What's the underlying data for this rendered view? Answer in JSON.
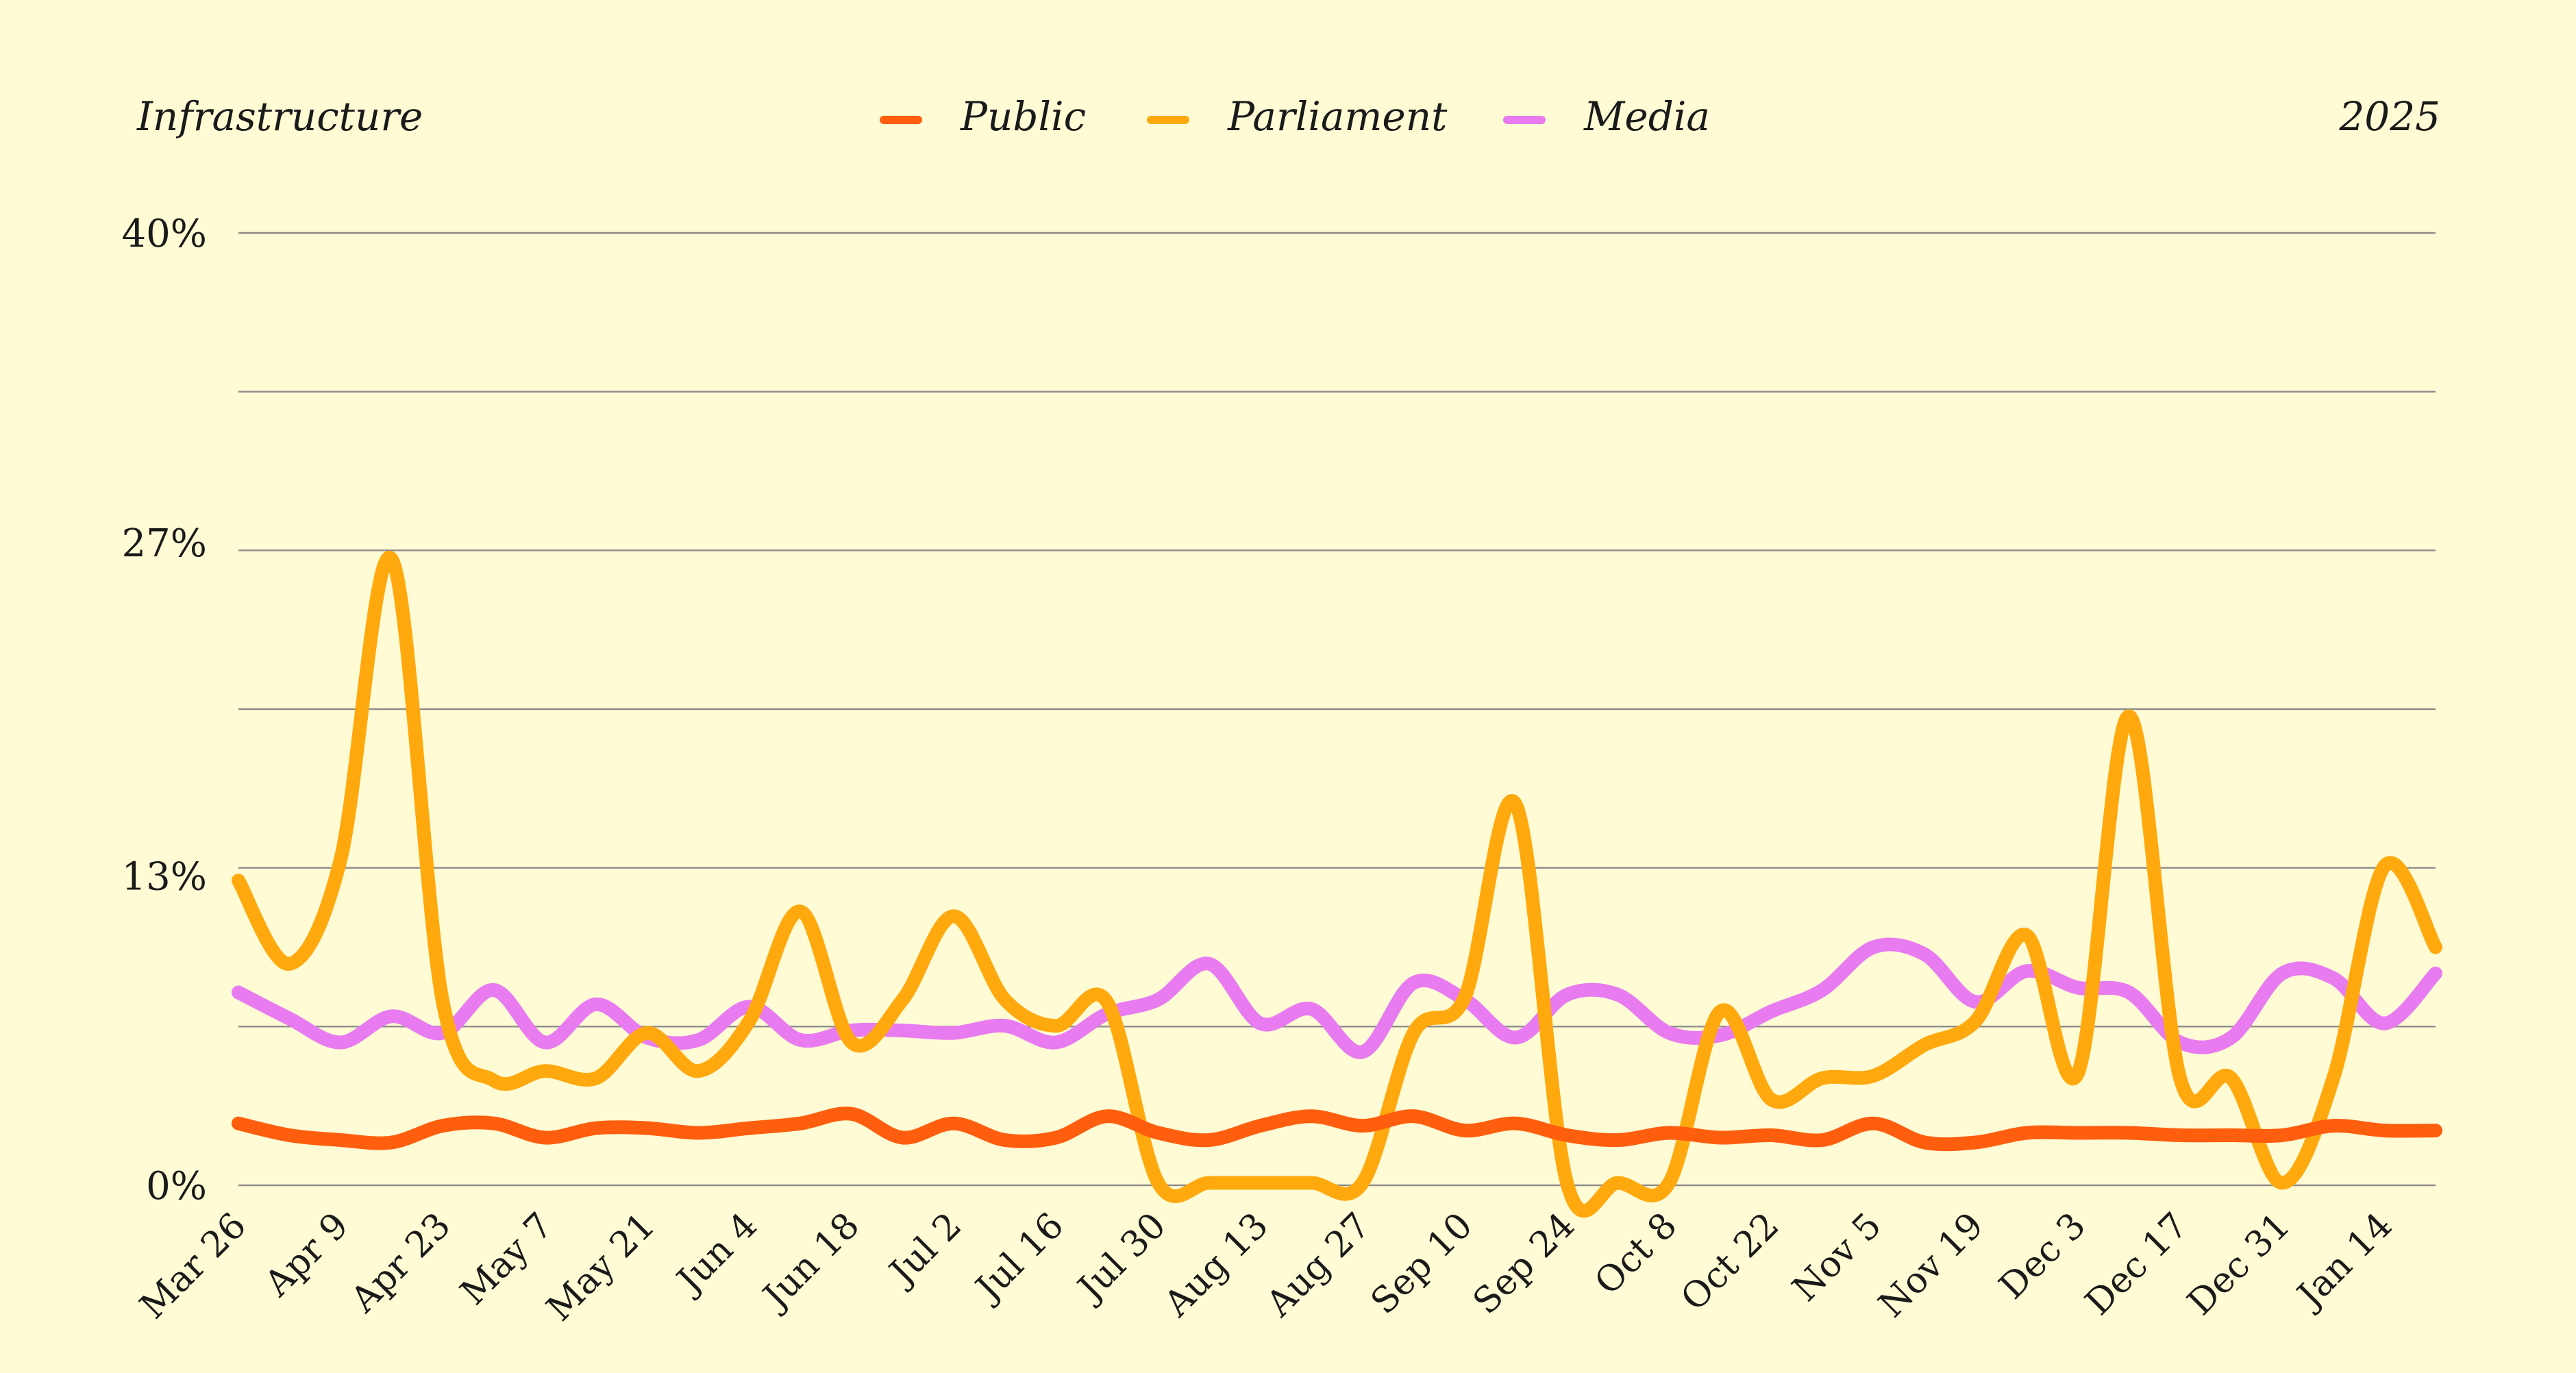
{
  "chart_data": {
    "type": "line",
    "title": "Infrastructure",
    "year_label": "2025",
    "ylim": [
      0,
      40
    ],
    "yticks": [
      0,
      13,
      27,
      40
    ],
    "ytick_labels": [
      "0%",
      "13%",
      "27%",
      "40%"
    ],
    "grid": true,
    "legend_position": "top-center",
    "categories": [
      "Mar 26",
      "Apr 2",
      "Apr 9",
      "Apr 16",
      "Apr 23",
      "Apr 30",
      "May 7",
      "May 14",
      "May 21",
      "May 28",
      "Jun 4",
      "Jun 11",
      "Jun 18",
      "Jun 25",
      "Jul 2",
      "Jul 9",
      "Jul 16",
      "Jul 23",
      "Jul 30",
      "Aug 6",
      "Aug 13",
      "Aug 20",
      "Aug 27",
      "Sep 3",
      "Sep 10",
      "Sep 17",
      "Sep 24",
      "Oct 1",
      "Oct 8",
      "Oct 15",
      "Oct 22",
      "Oct 29",
      "Nov 5",
      "Nov 12",
      "Nov 19",
      "Nov 26",
      "Dec 3",
      "Dec 10",
      "Dec 17",
      "Dec 24",
      "Dec 31",
      "Jan 7",
      "Jan 14",
      "Jan 21"
    ],
    "xtick_labels": [
      "Mar 26",
      "Apr 9",
      "Apr 23",
      "May 7",
      "May 21",
      "Jun 4",
      "Jun 18",
      "Jul 2",
      "Jul 16",
      "Jul 30",
      "Aug 13",
      "Aug 27",
      "Sep 10",
      "Sep 24",
      "Oct 8",
      "Oct 22",
      "Nov 5",
      "Nov 19",
      "Dec 3",
      "Dec 17",
      "Dec 31",
      "Jan 14"
    ],
    "series": [
      {
        "name": "Public",
        "color": "#ff5e0e",
        "values": [
          2.6,
          2.1,
          1.9,
          1.8,
          2.5,
          2.6,
          2.0,
          2.4,
          2.4,
          2.2,
          2.4,
          2.6,
          3.0,
          2.0,
          2.6,
          1.9,
          2.0,
          2.9,
          2.2,
          1.9,
          2.5,
          2.9,
          2.5,
          2.9,
          2.3,
          2.6,
          2.1,
          1.9,
          2.2,
          2.0,
          2.1,
          1.9,
          2.6,
          1.8,
          1.8,
          2.2,
          2.2,
          2.2,
          2.1,
          2.1,
          2.1,
          2.5,
          2.3,
          2.3
        ]
      },
      {
        "name": "Parliament",
        "color": "#ffa90f",
        "values": [
          12.8,
          9.3,
          13.7,
          26.3,
          7.7,
          4.4,
          4.8,
          4.5,
          6.4,
          4.8,
          6.9,
          11.5,
          6.0,
          7.8,
          11.3,
          7.8,
          6.7,
          7.7,
          0.1,
          0.1,
          0.1,
          0.1,
          0.1,
          6.4,
          7.9,
          16.0,
          0.1,
          0.1,
          0.1,
          7.3,
          3.6,
          4.5,
          4.6,
          5.9,
          6.9,
          10.5,
          4.7,
          19.7,
          4.5,
          4.5,
          0.1,
          4.5,
          13.4,
          10.0
        ]
      },
      {
        "name": "Media",
        "color": "#e87bf0",
        "values": [
          8.1,
          7.0,
          6.0,
          7.1,
          6.4,
          8.2,
          6.0,
          7.6,
          6.2,
          6.1,
          7.5,
          6.1,
          6.5,
          6.5,
          6.4,
          6.7,
          6.0,
          7.2,
          7.8,
          9.3,
          6.8,
          7.4,
          5.6,
          8.5,
          7.8,
          6.2,
          8.0,
          8.0,
          6.4,
          6.3,
          7.3,
          8.2,
          10.0,
          9.7,
          7.7,
          9.0,
          8.3,
          8.1,
          6.0,
          6.2,
          8.9,
          8.7,
          6.8,
          8.9
        ]
      }
    ]
  }
}
